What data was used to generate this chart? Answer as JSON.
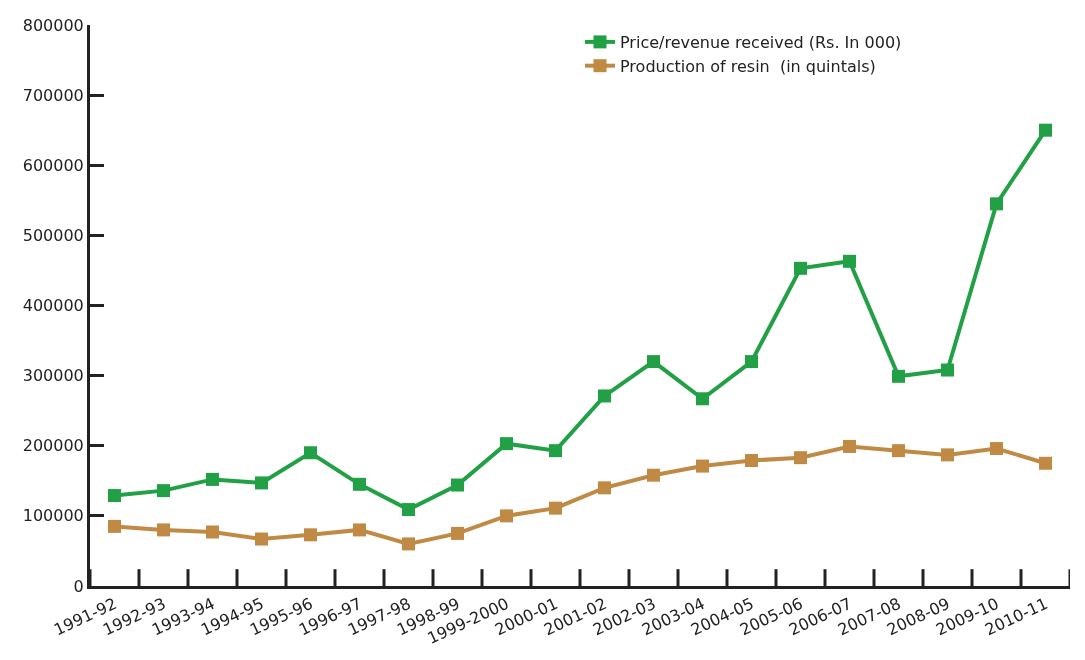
{
  "chart_data": {
    "type": "line",
    "categories": [
      "1991-92",
      "1992-93",
      "1993-94",
      "1994-95",
      "1995-96",
      "1996-97",
      "1997-98",
      "1998-99",
      "1999-2000",
      "2000-01",
      "2001-02",
      "2002-03",
      "2003-04",
      "2004-05",
      "2005-06",
      "2006-07",
      "2007-08",
      "2008-09",
      "2009-10",
      "2010-11"
    ],
    "series": [
      {
        "name": "Price/revenue received (Rs. In 000)",
        "color": "#22a045",
        "values": [
          129000,
          136000,
          152000,
          147000,
          190000,
          145000,
          109000,
          144000,
          203000,
          193000,
          271000,
          320000,
          267000,
          320000,
          453000,
          463000,
          299000,
          308000,
          545000,
          650000
        ]
      },
      {
        "name": "Production of resin  (in quintals)",
        "color": "#c08a45",
        "values": [
          85000,
          80000,
          77000,
          67000,
          73000,
          80000,
          60000,
          75000,
          100000,
          111000,
          140000,
          158000,
          171000,
          179000,
          183000,
          199000,
          193000,
          187000,
          196000,
          175000
        ]
      }
    ],
    "ylim": [
      0,
      800000
    ],
    "yticks": [
      0,
      100000,
      200000,
      300000,
      400000,
      500000,
      600000,
      700000,
      800000
    ],
    "legend": "top right",
    "marker": "square",
    "line_style": "solid"
  }
}
